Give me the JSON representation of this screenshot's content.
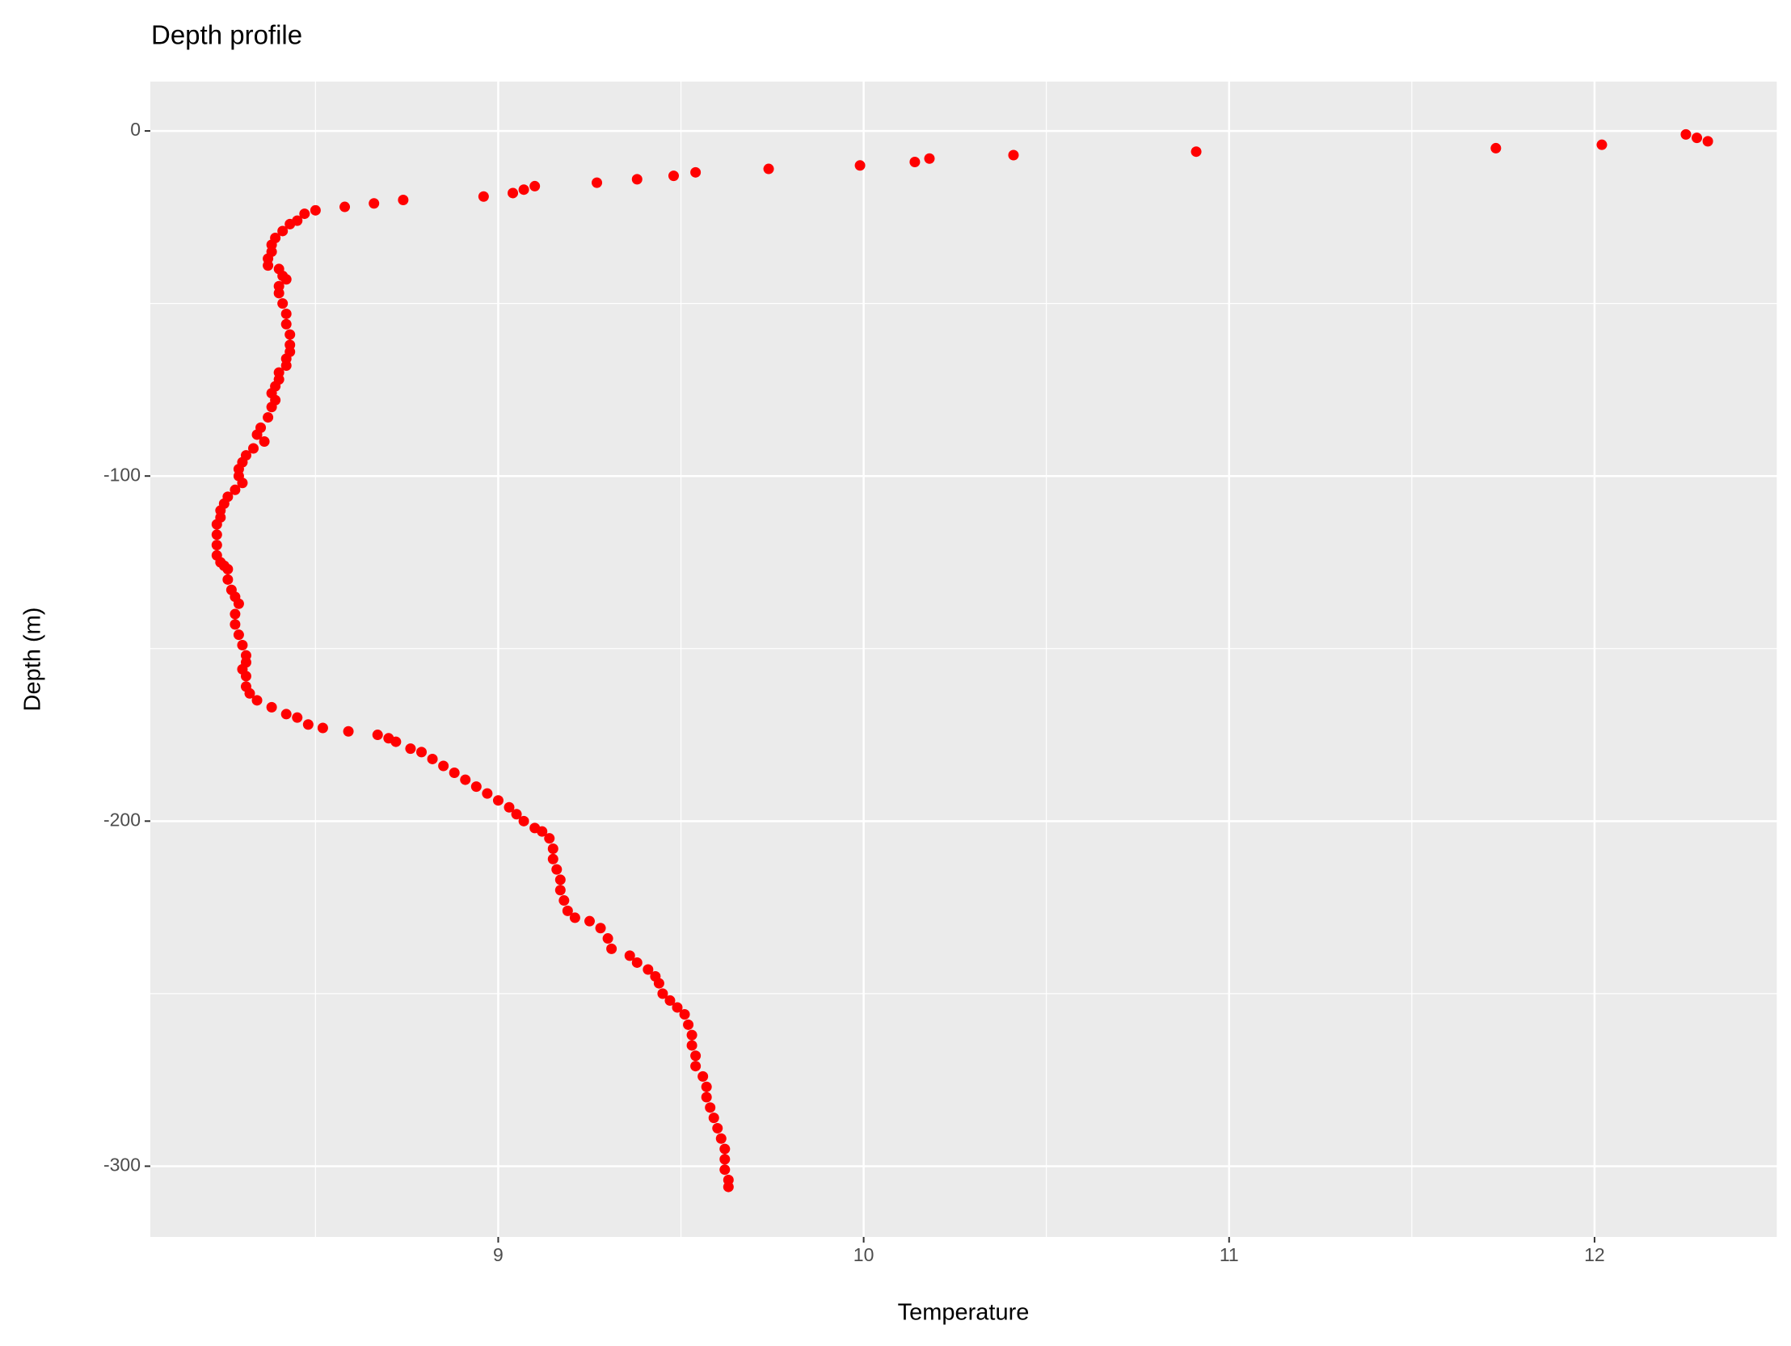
{
  "chart_data": {
    "type": "scatter",
    "title": "Depth profile",
    "x_label": "Temperature",
    "y_label": "Depth (m)",
    "color": "#ff0000",
    "background": "#ebebeb",
    "grid": true,
    "xlim": [
      8.048,
      12.5
    ],
    "ylim": [
      -320.5,
      14.3
    ],
    "xticks": [
      9,
      10,
      11,
      12
    ],
    "yticks": [
      -300,
      -200,
      -100,
      0
    ],
    "x_minor_ticks": [
      8.5,
      9.5,
      10.5,
      11.5,
      12.5
    ],
    "y_minor_ticks": [
      -250,
      -150,
      -50
    ],
    "x": [
      12.31,
      12.28,
      12.25,
      12.02,
      11.73,
      10.91,
      10.41,
      10.18,
      10.14,
      9.99,
      9.74,
      9.54,
      9.48,
      9.38,
      9.27,
      9.1,
      9.07,
      9.04,
      8.96,
      8.74,
      8.66,
      8.58,
      8.5,
      8.47,
      8.45,
      8.43,
      8.41,
      8.39,
      8.38,
      8.38,
      8.37,
      8.37,
      8.4,
      8.41,
      8.42,
      8.4,
      8.4,
      8.41,
      8.42,
      8.42,
      8.43,
      8.43,
      8.43,
      8.42,
      8.42,
      8.4,
      8.4,
      8.39,
      8.38,
      8.39,
      8.38,
      8.37,
      8.35,
      8.34,
      8.36,
      8.33,
      8.31,
      8.3,
      8.29,
      8.29,
      8.3,
      8.28,
      8.26,
      8.25,
      8.24,
      8.24,
      8.23,
      8.23,
      8.23,
      8.23,
      8.24,
      8.25,
      8.26,
      8.26,
      8.27,
      8.28,
      8.29,
      8.28,
      8.28,
      8.29,
      8.3,
      8.31,
      8.31,
      8.3,
      8.31,
      8.31,
      8.32,
      8.34,
      8.38,
      8.42,
      8.45,
      8.48,
      8.52,
      8.59,
      8.67,
      8.7,
      8.72,
      8.76,
      8.79,
      8.82,
      8.85,
      8.88,
      8.91,
      8.94,
      8.97,
      9.0,
      9.03,
      9.05,
      9.07,
      9.1,
      9.12,
      9.14,
      9.15,
      9.15,
      9.16,
      9.17,
      9.17,
      9.18,
      9.19,
      9.21,
      9.25,
      9.28,
      9.3,
      9.31,
      9.36,
      9.38,
      9.41,
      9.43,
      9.44,
      9.45,
      9.47,
      9.49,
      9.51,
      9.52,
      9.53,
      9.53,
      9.54,
      9.54,
      9.56,
      9.57,
      9.57,
      9.58,
      9.59,
      9.6,
      9.61,
      9.62,
      9.62,
      9.62,
      9.63,
      9.63
    ],
    "values": [
      -3,
      -2,
      -1,
      -4,
      -5,
      -6,
      -7,
      -8,
      -9,
      -10,
      -11,
      -12,
      -13,
      -14,
      -15,
      -16,
      -17,
      -18,
      -19,
      -20,
      -21,
      -22,
      -23,
      -24,
      -26,
      -27,
      -29,
      -31,
      -33,
      -35,
      -37,
      -39,
      -40,
      -42,
      -43,
      -45,
      -47,
      -50,
      -53,
      -56,
      -59,
      -62,
      -64,
      -66,
      -68,
      -70,
      -72,
      -74,
      -76,
      -78,
      -80,
      -83,
      -86,
      -88,
      -90,
      -92,
      -94,
      -96,
      -98,
      -100,
      -102,
      -104,
      -106,
      -108,
      -110,
      -112,
      -114,
      -117,
      -120,
      -123,
      -125,
      -126,
      -127,
      -130,
      -133,
      -135,
      -137,
      -140,
      -143,
      -146,
      -149,
      -152,
      -154,
      -156,
      -158,
      -161,
      -163,
      -165,
      -167,
      -169,
      -170,
      -172,
      -173,
      -174,
      -175,
      -176,
      -177,
      -179,
      -180,
      -182,
      -184,
      -186,
      -188,
      -190,
      -192,
      -194,
      -196,
      -198,
      -200,
      -202,
      -203,
      -205,
      -208,
      -211,
      -214,
      -217,
      -220,
      -223,
      -226,
      -228,
      -229,
      -231,
      -234,
      -237,
      -239,
      -241,
      -243,
      -245,
      -247,
      -250,
      -252,
      -254,
      -256,
      -259,
      -262,
      -265,
      -268,
      -271,
      -274,
      -277,
      -280,
      -283,
      -286,
      -289,
      -292,
      -295,
      -298,
      -301,
      -304,
      -306
    ]
  }
}
